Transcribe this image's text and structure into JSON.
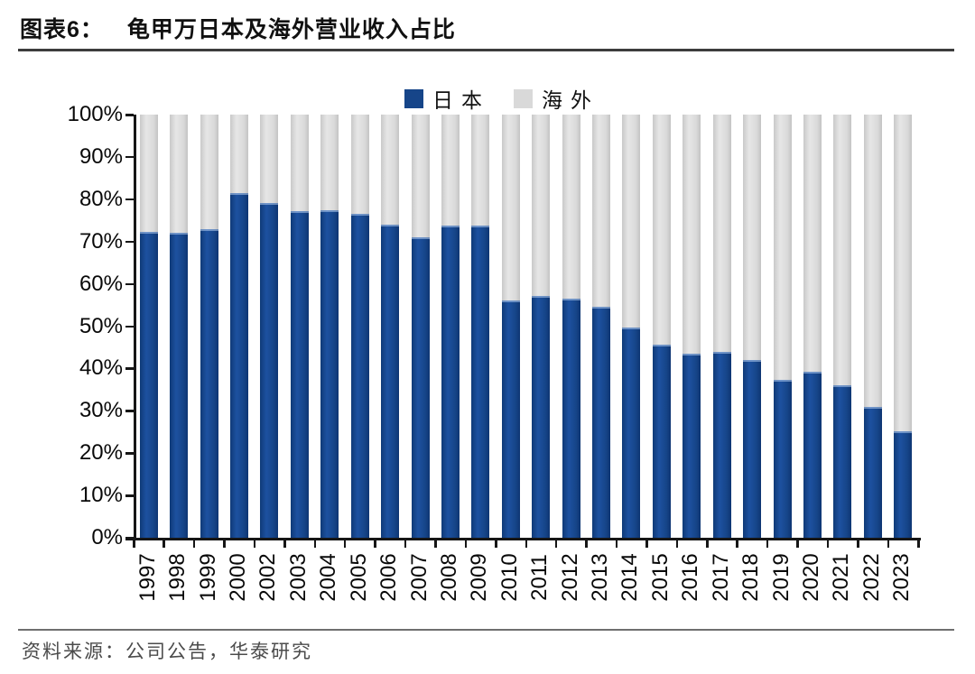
{
  "figure": {
    "label": "图表6：",
    "title": "龟甲万日本及海外营业收入占比",
    "source": "资料来源：公司公告，华泰研究"
  },
  "colors": {
    "japan": "#164589",
    "overseas": "#D9D9D9",
    "axis": "#161616"
  },
  "chart_data": {
    "type": "bar",
    "stacked": true,
    "title": "龟甲万日本及海外营业收入占比",
    "xlabel": "",
    "ylabel": "",
    "ylim": [
      0,
      100
    ],
    "y_tick_labels": [
      "0%",
      "10%",
      "20%",
      "30%",
      "40%",
      "50%",
      "60%",
      "70%",
      "80%",
      "90%",
      "100%"
    ],
    "legend_position": "top",
    "grid": false,
    "categories": [
      "1997",
      "1998",
      "1999",
      "2000",
      "2002",
      "2003",
      "2004",
      "2005",
      "2006",
      "2007",
      "2008",
      "2009",
      "2010",
      "2011",
      "2012",
      "2013",
      "2014",
      "2015",
      "2016",
      "2017",
      "2018",
      "2019",
      "2020",
      "2021",
      "2022",
      "2023"
    ],
    "series": [
      {
        "name": "日本",
        "color": "#164589",
        "values": [
          72.2,
          72.0,
          73.0,
          81.4,
          79.2,
          77.2,
          77.3,
          76.5,
          74.0,
          71.0,
          73.8,
          73.7,
          56.1,
          57.2,
          56.4,
          54.5,
          49.6,
          45.7,
          43.5,
          44.0,
          42.0,
          37.3,
          39.3,
          36.0,
          31.0,
          25.2
        ]
      },
      {
        "name": "海外",
        "color": "#D9D9D9",
        "values": [
          27.8,
          28.0,
          27.0,
          18.6,
          20.8,
          22.8,
          22.7,
          23.5,
          26.0,
          29.0,
          26.2,
          26.3,
          43.9,
          42.8,
          43.6,
          45.5,
          50.4,
          54.3,
          56.5,
          56.0,
          58.0,
          62.7,
          60.7,
          64.0,
          69.0,
          74.8
        ]
      }
    ]
  }
}
